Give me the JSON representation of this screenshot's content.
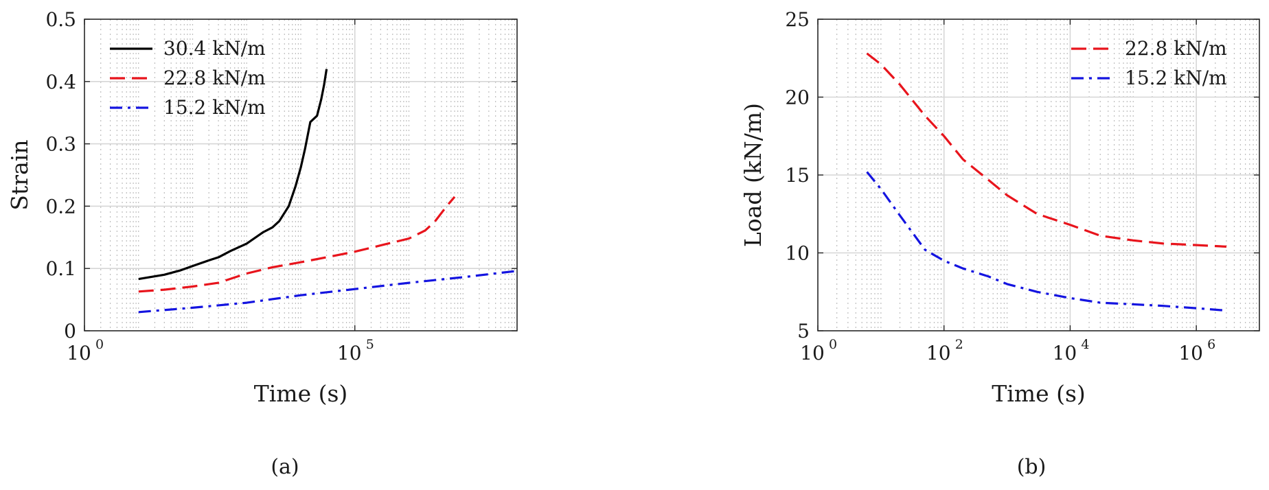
{
  "figure": {
    "caption_a": "(a)",
    "caption_b": "(b)"
  },
  "chart_data": [
    {
      "type": "line",
      "xlabel": "Time (s)",
      "ylabel": "Strain",
      "xscale": "log",
      "xlim": [
        1,
        100000000
      ],
      "ylim": [
        0,
        0.5
      ],
      "yticks": [
        0,
        0.1,
        0.2,
        0.3,
        0.4,
        0.5
      ],
      "ytick_labels": [
        "0",
        "0.1",
        "0.2",
        "0.3",
        "0.4",
        "0.5"
      ],
      "xticks": [
        1,
        100000
      ],
      "xtick_labels": [
        {
          "base": "10",
          "exp": "0"
        },
        {
          "base": "10",
          "exp": "5"
        }
      ],
      "grid": true,
      "legend_position": "top-left",
      "series": [
        {
          "name": "30.4 kN/m",
          "color": "#000000",
          "style": "solid",
          "x": [
            10,
            30,
            60,
            100,
            200,
            300,
            500,
            1000,
            2000,
            3000,
            4000,
            6000,
            8000,
            10000,
            12000,
            15000,
            20000,
            24000,
            27000,
            30000
          ],
          "y": [
            0.083,
            0.09,
            0.097,
            0.104,
            0.113,
            0.118,
            0.128,
            0.14,
            0.158,
            0.166,
            0.176,
            0.2,
            0.232,
            0.262,
            0.292,
            0.335,
            0.345,
            0.372,
            0.395,
            0.42
          ]
        },
        {
          "name": "22.8 kN/m",
          "color": "#e8141c",
          "style": "dashed",
          "x": [
            10,
            30,
            100,
            300,
            1000,
            3000,
            10000,
            30000,
            100000,
            300000,
            1000000,
            2000000,
            3000000,
            5000000,
            7000000
          ],
          "y": [
            0.063,
            0.066,
            0.071,
            0.077,
            0.092,
            0.102,
            0.11,
            0.118,
            0.127,
            0.137,
            0.148,
            0.161,
            0.175,
            0.2,
            0.215
          ]
        },
        {
          "name": "15.2 kN/m",
          "color": "#1414e0",
          "style": "dashdot",
          "x": [
            10,
            100,
            1000,
            10000,
            100000,
            1000000,
            10000000,
            100000000
          ],
          "y": [
            0.03,
            0.037,
            0.045,
            0.057,
            0.067,
            0.077,
            0.086,
            0.096
          ]
        }
      ]
    },
    {
      "type": "line",
      "xlabel": "Time (s)",
      "ylabel": "Load (kN/m)",
      "xscale": "log",
      "xlim": [
        1,
        10000000
      ],
      "ylim": [
        5,
        25
      ],
      "yticks": [
        5,
        10,
        15,
        20,
        25
      ],
      "ytick_labels": [
        "5",
        "10",
        "15",
        "20",
        "25"
      ],
      "xticks": [
        1,
        100,
        10000,
        1000000
      ],
      "xtick_labels": [
        {
          "base": "10",
          "exp": "0"
        },
        {
          "base": "10",
          "exp": "2"
        },
        {
          "base": "10",
          "exp": "4"
        },
        {
          "base": "10",
          "exp": "6"
        }
      ],
      "grid": true,
      "legend_position": "top-right",
      "series": [
        {
          "name": "22.8 kN/m",
          "color": "#e8141c",
          "style": "dashed",
          "x": [
            6,
            10,
            20,
            50,
            100,
            200,
            500,
            1000,
            3000,
            10000,
            30000,
            100000,
            300000,
            1000000,
            3000000
          ],
          "y": [
            22.8,
            22.1,
            20.8,
            18.8,
            17.5,
            16.0,
            14.7,
            13.7,
            12.5,
            11.8,
            11.1,
            10.8,
            10.6,
            10.5,
            10.4
          ]
        },
        {
          "name": "15.2 kN/m",
          "color": "#1414e0",
          "style": "dashdot",
          "x": [
            6,
            10,
            20,
            50,
            100,
            200,
            500,
            1000,
            3000,
            10000,
            30000,
            100000,
            300000,
            1000000,
            3000000
          ],
          "y": [
            15.2,
            14.1,
            12.4,
            10.2,
            9.5,
            9.0,
            8.5,
            8.0,
            7.5,
            7.1,
            6.8,
            6.7,
            6.6,
            6.45,
            6.3
          ]
        }
      ]
    }
  ]
}
